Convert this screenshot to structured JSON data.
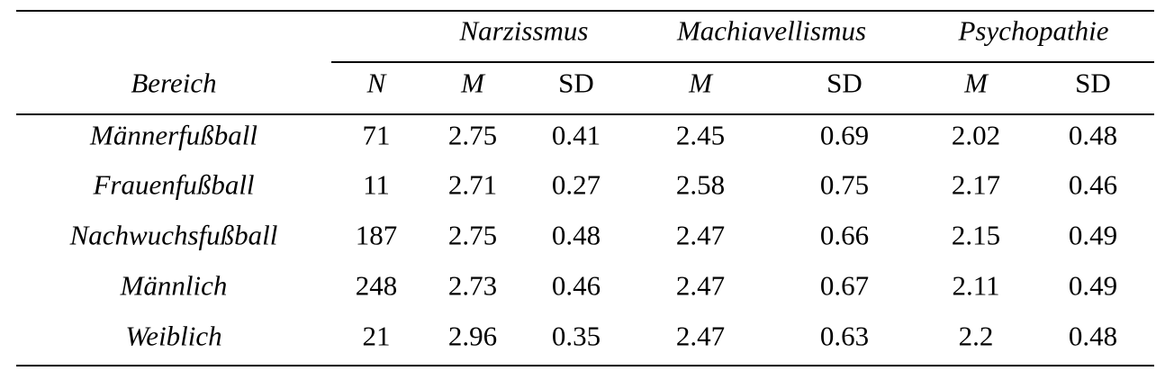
{
  "table": {
    "group_headers": {
      "narcissism": "Narzissmus",
      "machiavellianism": "Machiavellismus",
      "psychopathy": "Psychopathie"
    },
    "column_headers": {
      "area": "Bereich",
      "n": "N",
      "narc_m": "M",
      "narc_sd": "SD",
      "mach_m": "M",
      "mach_sd": "SD",
      "psych_m": "M",
      "psych_sd": "SD"
    },
    "rows": [
      {
        "area": "Männerfußball",
        "n": "71",
        "narc_m": "2.75",
        "narc_sd": "0.41",
        "mach_m": "2.45",
        "mach_sd": "0.69",
        "psych_m": "2.02",
        "psych_sd": "0.48"
      },
      {
        "area": "Frauenfußball",
        "n": "11",
        "narc_m": "2.71",
        "narc_sd": "0.27",
        "mach_m": "2.58",
        "mach_sd": "0.75",
        "psych_m": "2.17",
        "psych_sd": "0.46"
      },
      {
        "area": "Nachwuchsfußball",
        "n": "187",
        "narc_m": "2.75",
        "narc_sd": "0.48",
        "mach_m": "2.47",
        "mach_sd": "0.66",
        "psych_m": "2.15",
        "psych_sd": "0.49"
      },
      {
        "area": "Männlich",
        "n": "248",
        "narc_m": "2.73",
        "narc_sd": "0.46",
        "mach_m": "2.47",
        "mach_sd": "0.67",
        "psych_m": "2.11",
        "psych_sd": "0.49"
      },
      {
        "area": "Weiblich",
        "n": "21",
        "narc_m": "2.96",
        "narc_sd": "0.35",
        "mach_m": "2.47",
        "mach_sd": "0.63",
        "psych_m": "2.2",
        "psych_sd": "0.48"
      }
    ]
  }
}
